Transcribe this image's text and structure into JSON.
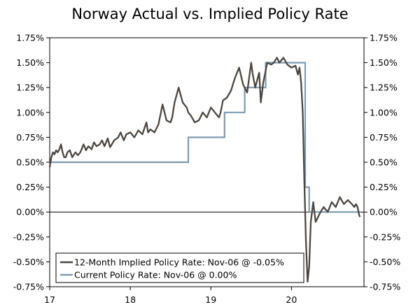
{
  "chart_data": {
    "type": "line",
    "title": "Norway Actual vs. Implied Policy Rate",
    "xlabel": "",
    "ylabel": "",
    "x_range": [
      2017.0,
      2020.9
    ],
    "ylim": [
      -0.75,
      1.75
    ],
    "x_tick_labels": [
      {
        "x": 2017,
        "label": "17"
      },
      {
        "x": 2018,
        "label": "18"
      },
      {
        "x": 2019,
        "label": "19"
      },
      {
        "x": 2020,
        "label": "20"
      }
    ],
    "y_ticks": [
      1.75,
      1.5,
      1.25,
      1.0,
      0.75,
      0.5,
      0.25,
      0.0,
      -0.25,
      -0.5,
      -0.75
    ],
    "y_tick_labels": [
      "1.75%",
      "1.50%",
      "1.25%",
      "1.00%",
      "0.75%",
      "0.50%",
      "0.25%",
      "0.00%",
      "-0.25%",
      "-0.50%",
      "-0.75%"
    ],
    "zero_line": 0.0,
    "legend_position": "bottom-left",
    "series": [
      {
        "name": "12-Month Implied Policy Rate",
        "legend_label": "12-Month Implied Policy Rate: Nov-06 @ -0.05%",
        "color": "#4d4640",
        "x": [
          2017.0,
          2017.02,
          2017.04,
          2017.06,
          2017.08,
          2017.1,
          2017.12,
          2017.14,
          2017.16,
          2017.18,
          2017.2,
          2017.22,
          2017.25,
          2017.28,
          2017.32,
          2017.35,
          2017.38,
          2017.42,
          2017.45,
          2017.48,
          2017.52,
          2017.55,
          2017.58,
          2017.62,
          2017.65,
          2017.68,
          2017.72,
          2017.75,
          2017.8,
          2017.85,
          2017.88,
          2017.92,
          2017.95,
          2018.0,
          2018.05,
          2018.1,
          2018.15,
          2018.2,
          2018.22,
          2018.25,
          2018.3,
          2018.35,
          2018.4,
          2018.45,
          2018.5,
          2018.52,
          2018.55,
          2018.6,
          2018.65,
          2018.7,
          2018.72,
          2018.75,
          2018.8,
          2018.85,
          2018.9,
          2018.95,
          2019.0,
          2019.05,
          2019.1,
          2019.12,
          2019.15,
          2019.2,
          2019.25,
          2019.3,
          2019.35,
          2019.4,
          2019.45,
          2019.5,
          2019.52,
          2019.55,
          2019.6,
          2019.62,
          2019.65,
          2019.7,
          2019.75,
          2019.78,
          2019.82,
          2019.85,
          2019.9,
          2019.95,
          2020.0,
          2020.05,
          2020.08,
          2020.1,
          2020.12,
          2020.14,
          2020.16,
          2020.18,
          2020.2,
          2020.22,
          2020.24,
          2020.27,
          2020.3,
          2020.33,
          2020.36,
          2020.4,
          2020.45,
          2020.5,
          2020.55,
          2020.6,
          2020.65,
          2020.7,
          2020.75,
          2020.78,
          2020.8,
          2020.82,
          2020.84,
          2020.85
        ],
        "y": [
          0.45,
          0.55,
          0.6,
          0.58,
          0.62,
          0.6,
          0.63,
          0.68,
          0.6,
          0.55,
          0.55,
          0.6,
          0.62,
          0.55,
          0.6,
          0.57,
          0.6,
          0.68,
          0.62,
          0.66,
          0.63,
          0.7,
          0.66,
          0.68,
          0.72,
          0.66,
          0.74,
          0.65,
          0.72,
          0.75,
          0.8,
          0.72,
          0.78,
          0.8,
          0.75,
          0.82,
          0.78,
          0.9,
          0.8,
          0.83,
          0.8,
          0.88,
          1.08,
          0.92,
          0.9,
          0.95,
          1.1,
          1.25,
          1.1,
          1.05,
          1.0,
          0.97,
          0.9,
          0.92,
          1.0,
          0.95,
          1.05,
          1.0,
          0.95,
          1.0,
          1.12,
          1.15,
          1.22,
          1.35,
          1.45,
          1.28,
          1.2,
          1.5,
          1.38,
          1.25,
          1.4,
          1.1,
          1.3,
          1.5,
          1.48,
          1.5,
          1.55,
          1.5,
          1.55,
          1.48,
          1.45,
          1.47,
          1.38,
          1.45,
          1.3,
          1.0,
          0.3,
          -0.3,
          -0.7,
          -0.55,
          -0.1,
          0.1,
          -0.1,
          -0.05,
          0.0,
          0.05,
          0.0,
          0.1,
          0.05,
          0.15,
          0.08,
          0.12,
          0.08,
          0.05,
          0.08,
          0.05,
          -0.03,
          -0.05
        ]
      },
      {
        "name": "Current Policy Rate",
        "legend_label": "Current Policy Rate: Nov-06 @ 0.00%",
        "color": "#7c9bb0",
        "x": [
          2017.0,
          2018.72,
          2018.72,
          2019.17,
          2019.17,
          2019.42,
          2019.42,
          2019.68,
          2019.68,
          2020.17,
          2020.17,
          2020.22,
          2020.22,
          2020.86
        ],
        "y": [
          0.5,
          0.5,
          0.75,
          0.75,
          1.0,
          1.0,
          1.25,
          1.25,
          1.5,
          1.5,
          0.25,
          0.25,
          0.0,
          0.0
        ]
      }
    ]
  }
}
